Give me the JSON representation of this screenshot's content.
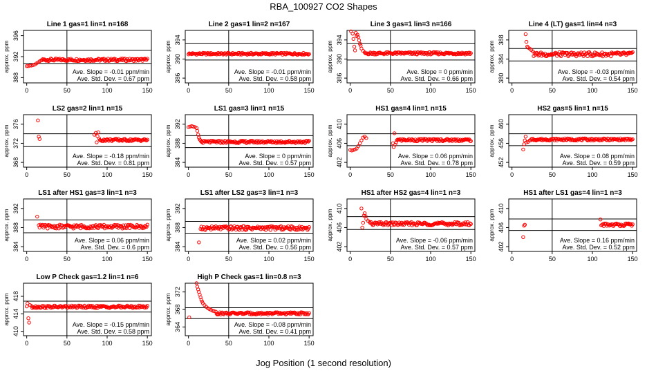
{
  "figure": {
    "title": "RBA_100927  CO2 Shapes",
    "xlabel": "Jog Position (1 second resolution)",
    "ylabel": "approx. ppm",
    "slope_prefix": "Ave. Slope = ",
    "std_prefix": "Ave. Std. Dev. = ",
    "colors": {
      "points": "#ff0000",
      "axes": "#000000"
    }
  },
  "chart_data": [
    {
      "type": "scatter",
      "title": "Line 1 gas=1 lin=1 n=168",
      "ylim": [
        387,
        397
      ],
      "yticks": [
        388,
        392,
        396
      ],
      "xlim": [
        -4,
        155
      ],
      "xticks": [
        0,
        50,
        100,
        150
      ],
      "hlines": [
        393.2,
        390.7
      ],
      "vline": 50,
      "slope": "-0.01  ppm/min",
      "std": "0.67  ppm",
      "shape": {
        "base": 391.4,
        "noise": 0.25,
        "points": [
          [
            0,
            390.2
          ],
          [
            2,
            390.2
          ],
          [
            4,
            390.3
          ],
          [
            6,
            390.3
          ],
          [
            8,
            390.4
          ],
          [
            10,
            390.5
          ],
          [
            12,
            390.7
          ],
          [
            14,
            390.9
          ],
          [
            16,
            391.1
          ],
          [
            18,
            391.3
          ]
        ]
      }
    },
    {
      "type": "scatter",
      "title": "Line 2 gas=1 lin=2 n=167",
      "ylim": [
        385,
        396
      ],
      "yticks": [
        386,
        390,
        394
      ],
      "xlim": [
        -4,
        155
      ],
      "xticks": [
        0,
        50,
        100,
        150
      ],
      "hlines": [
        393.3,
        389.8
      ],
      "vline": 50,
      "slope": "-0.01  ppm/min",
      "std": "0.58  ppm",
      "shape": {
        "base": 391.1,
        "noise": 0.2,
        "points": []
      }
    },
    {
      "type": "scatter",
      "title": "Line 3 gas=1 lin=3 n=166",
      "ylim": [
        385,
        396
      ],
      "yticks": [
        386,
        390,
        394
      ],
      "xlim": [
        -4,
        155
      ],
      "xticks": [
        0,
        50,
        100,
        150
      ],
      "hlines": [
        393.3,
        389.8
      ],
      "vline": 50,
      "slope": "0  ppm/min",
      "std": "0.66  ppm",
      "shape": {
        "base": 391.2,
        "noise": 0.25,
        "points": [
          [
            1,
            395.8
          ],
          [
            3,
            395.3
          ],
          [
            4,
            394.2
          ],
          [
            5,
            392.6
          ],
          [
            6,
            391.8
          ],
          [
            7,
            395.5
          ],
          [
            8,
            394.8
          ],
          [
            9,
            395.1
          ],
          [
            10,
            394.6
          ],
          [
            11,
            393.9
          ],
          [
            12,
            393.2
          ],
          [
            13,
            392.8
          ],
          [
            14,
            392.2
          ],
          [
            16,
            391.7
          ],
          [
            18,
            391.4
          ]
        ]
      }
    },
    {
      "type": "scatter",
      "title": "Line 4 (LT) gas=1 lin=4 n=3",
      "ylim": [
        379,
        390
      ],
      "yticks": [
        380,
        384,
        388
      ],
      "xlim": [
        -4,
        155
      ],
      "xticks": [
        0,
        50,
        100,
        150
      ],
      "hlines": [
        386.2,
        383.6
      ],
      "vline": 50,
      "slope": "-0.03  ppm/min",
      "std": "0.54  ppm",
      "shape": {
        "base": 385.0,
        "noise": 0.45,
        "points": [
          [
            17,
            389.2
          ],
          [
            18,
            387.6
          ],
          [
            19,
            386.6
          ],
          [
            20,
            386.4
          ],
          [
            22,
            386.2
          ],
          [
            24,
            385.9
          ],
          [
            26,
            385.6
          ]
        ]
      }
    },
    {
      "type": "scatter",
      "title": "LS2 gas=2 lin=1 n=15",
      "ylim": [
        367,
        378
      ],
      "yticks": [
        368,
        372,
        376
      ],
      "xlim": [
        -4,
        155
      ],
      "xticks": [
        0,
        50,
        100,
        150
      ],
      "hlines": [
        374.0,
        371.3
      ],
      "vline": 50,
      "slope": "-0.18  ppm/min",
      "std": "0.81  ppm",
      "shape": {
        "base": 372.7,
        "noise": 0.25,
        "points": [
          [
            14,
            376.8
          ],
          [
            15,
            373.4
          ],
          [
            16,
            372.9
          ],
          [
            84,
            373.8
          ],
          [
            86,
            374.2
          ],
          [
            87,
            372.2
          ],
          [
            88,
            373.5
          ],
          [
            89,
            374.3
          ],
          [
            90,
            373.0
          ]
        ]
      }
    },
    {
      "type": "scatter",
      "title": "LS1 gas=3 lin=1 n=15",
      "ylim": [
        383,
        394
      ],
      "yticks": [
        384,
        388,
        392
      ],
      "xlim": [
        -4,
        155
      ],
      "xticks": [
        0,
        50,
        100,
        150
      ],
      "hlines": [
        389.6,
        387.1
      ],
      "vline": 50,
      "slope": "0  ppm/min",
      "std": "0.57  ppm",
      "shape": {
        "base": 388.3,
        "noise": 0.25,
        "points": [
          [
            0,
            391.4
          ],
          [
            2,
            391.5
          ],
          [
            4,
            391.6
          ],
          [
            6,
            391.5
          ],
          [
            8,
            391.4
          ],
          [
            10,
            391.2
          ],
          [
            11,
            390.6
          ],
          [
            12,
            389.8
          ],
          [
            13,
            389.2
          ],
          [
            14,
            388.8
          ],
          [
            15,
            388.6
          ]
        ]
      }
    },
    {
      "type": "scatter",
      "title": "HS1 gas=4 lin=1 n=15",
      "ylim": [
        401,
        412
      ],
      "yticks": [
        402,
        406,
        410
      ],
      "xlim": [
        -4,
        155
      ],
      "xticks": [
        0,
        50,
        100,
        150
      ],
      "hlines": [
        408.0,
        405.5
      ],
      "vline": 50,
      "slope": "0.06  ppm/min",
      "std": "0.78  ppm",
      "shape": {
        "base": 406.7,
        "noise": 0.25,
        "points": [
          [
            0,
            404.6
          ],
          [
            2,
            404.5
          ],
          [
            4,
            404.6
          ],
          [
            6,
            404.7
          ],
          [
            8,
            404.9
          ],
          [
            10,
            405.4
          ],
          [
            12,
            406.0
          ],
          [
            14,
            406.6
          ],
          [
            16,
            407.2
          ],
          [
            18,
            407.4
          ],
          [
            20,
            407.1
          ],
          [
            53,
            406.0
          ],
          [
            54,
            405.2
          ],
          [
            55,
            408.1
          ],
          [
            56,
            405.7
          ],
          [
            57,
            406.2
          ]
        ]
      }
    },
    {
      "type": "scatter",
      "title": "HS2 gas=5 lin=1 n=15",
      "ylim": [
        451,
        462
      ],
      "yticks": [
        452,
        456,
        460
      ],
      "xlim": [
        -4,
        155
      ],
      "xticks": [
        0,
        50,
        100,
        150
      ],
      "hlines": [
        458.0,
        455.5
      ],
      "vline": 50,
      "slope": "0.08  ppm/min",
      "std": "0.59  ppm",
      "shape": {
        "base": 456.8,
        "noise": 0.22,
        "points": [
          [
            14,
            454.7
          ],
          [
            15,
            455.8
          ],
          [
            16,
            456.6
          ],
          [
            17,
            457.4
          ],
          [
            18,
            456.2
          ],
          [
            20,
            456.3
          ],
          [
            22,
            456.6
          ]
        ]
      }
    },
    {
      "type": "scatter",
      "title": "LS1 after HS1 gas=3 lin=1 n=3",
      "ylim": [
        383,
        394
      ],
      "yticks": [
        384,
        388,
        392
      ],
      "xlim": [
        -4,
        155
      ],
      "xticks": [
        0,
        50,
        100,
        150
      ],
      "hlines": [
        389.6,
        386.9
      ],
      "vline": 50,
      "slope": "0.06  ppm/min",
      "std": "0.6  ppm",
      "shape": {
        "base": 388.2,
        "noise": 0.4,
        "points": [
          [
            13,
            390.3
          ],
          [
            15,
            388.5
          ],
          [
            16,
            388.0
          ]
        ]
      }
    },
    {
      "type": "scatter",
      "title": "LS1 after LS2 gas=3 lin=1 n=3",
      "ylim": [
        383,
        394
      ],
      "yticks": [
        384,
        388,
        392
      ],
      "xlim": [
        -4,
        155
      ],
      "xticks": [
        0,
        50,
        100,
        150
      ],
      "hlines": [
        389.3,
        386.7
      ],
      "vline": 50,
      "slope": "0.02  ppm/min",
      "std": "0.56  ppm",
      "shape": {
        "base": 387.9,
        "noise": 0.4,
        "points": [
          [
            13,
            384.9
          ],
          [
            15,
            387.7
          ],
          [
            16,
            388.2
          ]
        ]
      }
    },
    {
      "type": "scatter",
      "title": "HS1 after HS2 gas=4 lin=1 n=3",
      "ylim": [
        401,
        412
      ],
      "yticks": [
        402,
        406,
        410
      ],
      "xlim": [
        -4,
        155
      ],
      "xticks": [
        0,
        50,
        100,
        150
      ],
      "hlines": [
        408.3,
        405.6
      ],
      "vline": 50,
      "slope": "-0.06  ppm/min",
      "std": "0.57  ppm",
      "shape": {
        "base": 406.8,
        "noise": 0.35,
        "points": [
          [
            14,
            410.0
          ],
          [
            15,
            406.0
          ],
          [
            16,
            407.0
          ],
          [
            17,
            408.5
          ],
          [
            18,
            409.0
          ],
          [
            19,
            408.4
          ],
          [
            20,
            407.8
          ],
          [
            22,
            407.4
          ],
          [
            24,
            407.2
          ]
        ]
      }
    },
    {
      "type": "scatter",
      "title": "HS1 after LS1 gas=4 lin=1 n=3",
      "ylim": [
        401,
        412
      ],
      "yticks": [
        402,
        406,
        410
      ],
      "xlim": [
        -4,
        155
      ],
      "xticks": [
        0,
        50,
        100,
        150
      ],
      "hlines": [
        407.8,
        405.4
      ],
      "vline": 50,
      "slope": "0.16  ppm/min",
      "std": "0.52  ppm",
      "shape": {
        "base": 406.6,
        "noise": 0.3,
        "points": [
          [
            14,
            404.0
          ],
          [
            15,
            406.4
          ],
          [
            16,
            406.6
          ],
          [
            110,
            407.7
          ]
        ]
      }
    },
    {
      "type": "scatter",
      "title": "Low P Check gas=1.2 lin=1 n=6",
      "ylim": [
        409,
        421
      ],
      "yticks": [
        410,
        414,
        418
      ],
      "xlim": [
        -4,
        155
      ],
      "xticks": [
        0,
        50,
        100,
        150
      ],
      "hlines": [
        416.9,
        414.4
      ],
      "vline": 50,
      "slope": "-0.15  ppm/min",
      "std": "0.58  ppm",
      "shape": {
        "base": 415.6,
        "noise": 0.28,
        "points": [
          [
            0,
            415.7
          ],
          [
            1,
            416.4
          ],
          [
            2,
            413.0
          ],
          [
            3,
            412.0
          ],
          [
            4,
            416.0
          ],
          [
            6,
            415.8
          ]
        ]
      }
    },
    {
      "type": "scatter",
      "title": "High P Check gas=1 lin=0.8 n=3",
      "ylim": [
        362,
        374
      ],
      "yticks": [
        364,
        368,
        372
      ],
      "xlim": [
        -4,
        155
      ],
      "xticks": [
        0,
        50,
        100,
        150
      ],
      "hlines": [
        368.4,
        365.9
      ],
      "vline": 50,
      "slope": "-0.08  ppm/min",
      "std": "0.41  ppm",
      "shape": {
        "base": 367.1,
        "noise": 0.25,
        "points": [
          [
            1,
            366.2
          ],
          [
            10,
            374.0
          ],
          [
            11,
            373.2
          ],
          [
            12,
            372.6
          ],
          [
            13,
            372.0
          ],
          [
            14,
            371.4
          ],
          [
            15,
            370.8
          ],
          [
            16,
            370.2
          ],
          [
            17,
            369.8
          ],
          [
            18,
            369.4
          ],
          [
            20,
            369.0
          ],
          [
            22,
            368.6
          ],
          [
            24,
            368.3
          ],
          [
            26,
            368.1
          ],
          [
            28,
            367.9
          ],
          [
            30,
            367.7
          ],
          [
            32,
            367.6
          ],
          [
            34,
            367.5
          ]
        ]
      }
    }
  ]
}
